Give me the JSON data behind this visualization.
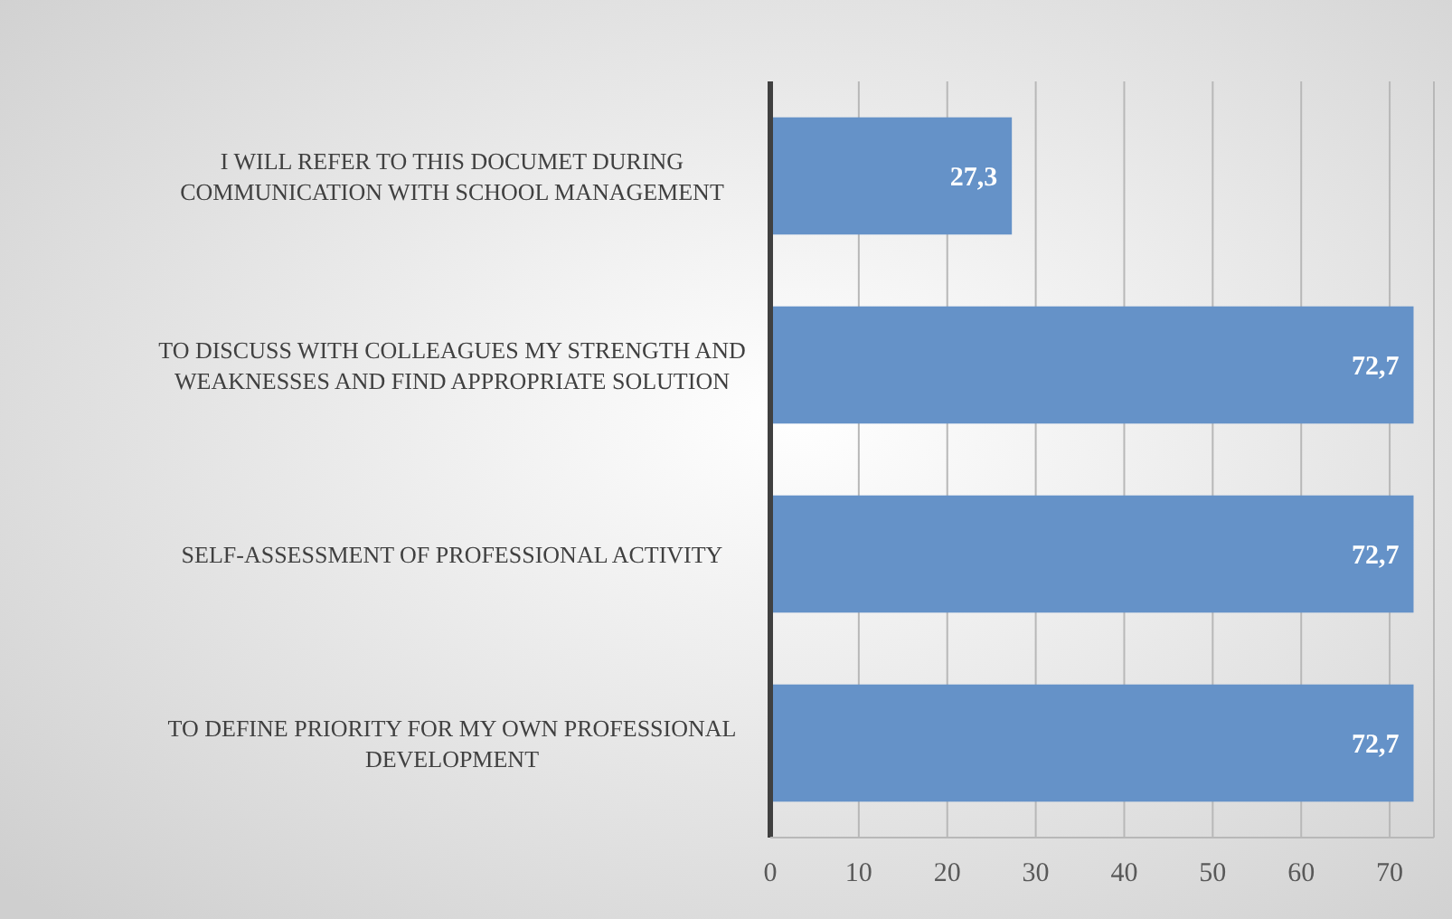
{
  "chart_data": {
    "type": "bar",
    "orientation": "horizontal",
    "categories": [
      "I WILL REFER TO THIS DOCUMET DURING COMMUNICATION WITH SCHOOL MANAGEMENT",
      "TO DISCUSS WITH COLLEAGUES MY STRENGTH AND WEAKNESSES AND FIND APPROPRIATE SOLUTION",
      "SELF-ASSESSMENT OF PROFESSIONAL ACTIVITY",
      "TO DEFINE PRIORITY FOR MY OWN PROFESSIONAL DEVELOPMENT"
    ],
    "values": [
      27.3,
      72.7,
      72.7,
      72.7
    ],
    "value_labels": [
      "27,3",
      "72,7",
      "72,7",
      "72,7"
    ],
    "color": "#6592c8",
    "xlim": [
      0,
      75
    ],
    "xticks": [
      0,
      10,
      20,
      30,
      40,
      50,
      60,
      70
    ],
    "grid": "x"
  }
}
